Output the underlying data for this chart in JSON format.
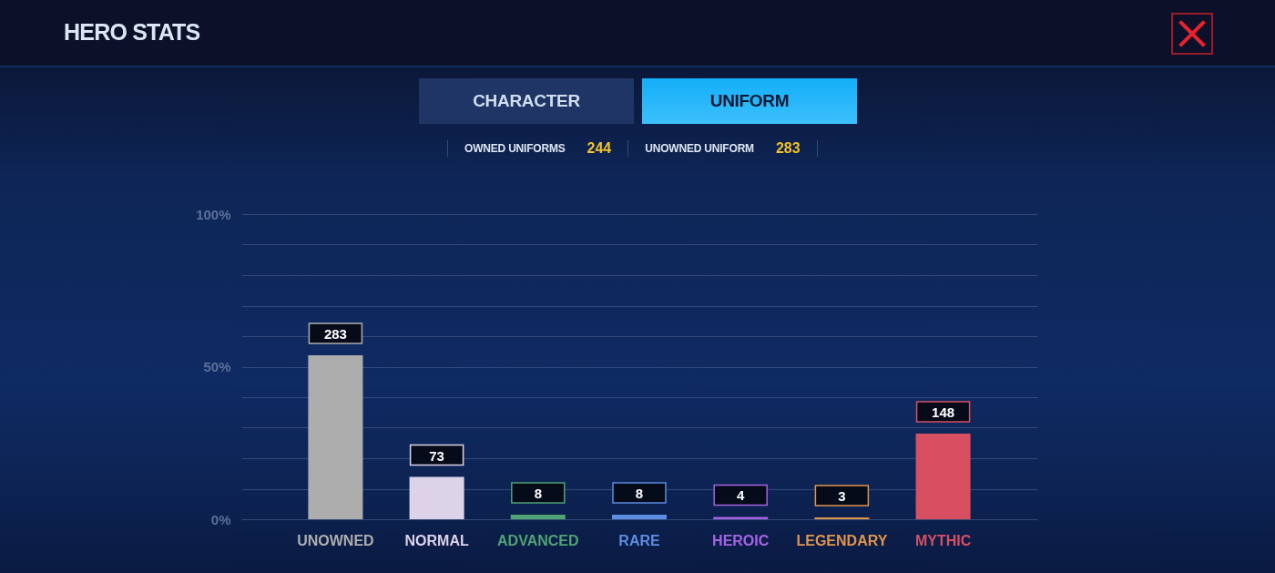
{
  "chart_data": {
    "type": "bar",
    "title": "HERO STATS",
    "annotations": [
      "CHARACTER",
      "UNIFORM",
      "OWNED UNIFORMS",
      "244",
      "UNOWNED UNIFORM",
      "283"
    ],
    "categories": [
      "UNOWNED",
      "NORMAL",
      "ADVANCED",
      "RARE",
      "HEROIC",
      "LEGENDARY",
      "MYTHIC"
    ],
    "series": [
      {
        "values": [
          283,
          73,
          8,
          8,
          4,
          3,
          148
        ],
        "axis": "y2"
      }
    ],
    "colors": [
      "#adadad",
      "#dcd3e9",
      "#4fa374",
      "#5d8de0",
      "#a464e4",
      "#e0944c",
      "#d84f62"
    ],
    "data_labels": true,
    "ylim": [
      0,
      100
    ],
    "yticks": [
      {
        "value": 0,
        "label": "0%"
      },
      {
        "value": 10,
        "label": null
      },
      {
        "value": 20,
        "label": null
      },
      {
        "value": 30,
        "label": null
      },
      {
        "value": 40,
        "label": null
      },
      {
        "value": 50,
        "label": "50%"
      },
      {
        "value": 60,
        "label": null
      },
      {
        "value": 70,
        "label": null
      },
      {
        "value": 80,
        "label": null
      },
      {
        "value": 90,
        "label": null
      },
      {
        "value": 100,
        "label": "100%"
      }
    ],
    "y2lim": [
      0,
      527
    ],
    "grid": "y"
  }
}
